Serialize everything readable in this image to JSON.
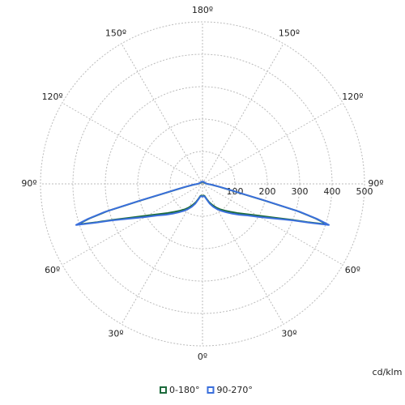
{
  "chart_data": {
    "type": "polar",
    "x": [
      0,
      5,
      10,
      15,
      20,
      25,
      30,
      35,
      40,
      45,
      50,
      55,
      60,
      65,
      68,
      70,
      72,
      73,
      74,
      75,
      76,
      78,
      80,
      85,
      90,
      100,
      120,
      140,
      160,
      180
    ],
    "series": [
      {
        "name": "0-180°",
        "color": "#1c6b3c",
        "values": [
          40,
          36,
          38,
          48,
          60,
          72,
          84,
          96,
          108,
          122,
          140,
          162,
          195,
          248,
          295,
          345,
          405,
          365,
          305,
          195,
          125,
          78,
          52,
          26,
          14,
          9,
          7,
          6,
          6,
          7
        ]
      },
      {
        "name": "90-270°",
        "color": "#3a6fdc",
        "values": [
          40,
          38,
          40,
          50,
          65,
          78,
          90,
          102,
          115,
          130,
          148,
          170,
          205,
          255,
          300,
          350,
          410,
          370,
          312,
          200,
          130,
          80,
          55,
          28,
          15,
          10,
          8,
          7,
          7,
          8
        ]
      }
    ],
    "rlim": [
      0,
      500
    ],
    "rticks": [
      100,
      200,
      300,
      400,
      500
    ],
    "angle_ticks": [
      {
        "value": 0,
        "label": "0º"
      },
      {
        "value": 30,
        "label": "30º"
      },
      {
        "value": 60,
        "label": "60º"
      },
      {
        "value": 90,
        "label": "90º"
      },
      {
        "value": 120,
        "label": "120º"
      },
      {
        "value": 150,
        "label": "150º"
      },
      {
        "value": 180,
        "label": "180º"
      }
    ],
    "unit": "cd/klm",
    "grid": true
  }
}
